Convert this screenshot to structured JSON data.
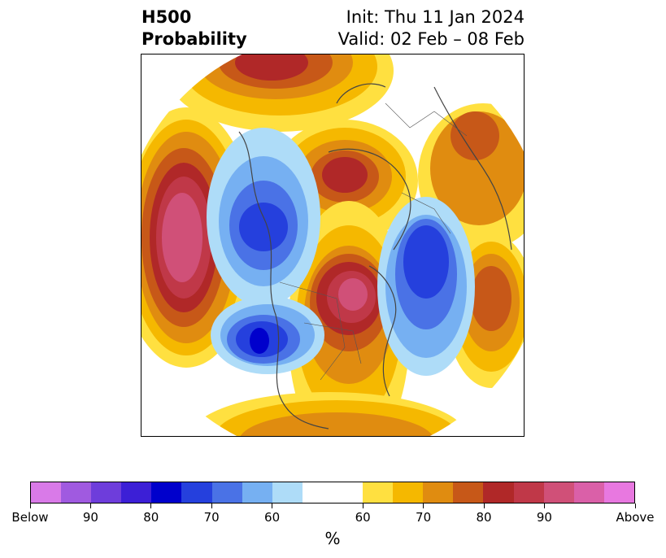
{
  "title": {
    "left_line1": "H500",
    "left_line2": "Probability",
    "right_line1": "Init: Thu 11 Jan 2024",
    "right_line2": "Valid: 02 Feb – 08 Feb"
  },
  "colorbar": {
    "unit": "%",
    "below_colors": [
      "#d97ae8",
      "#a05ae0",
      "#6e3ddb",
      "#3c1fd6",
      "#0000cc",
      "#2540dd",
      "#4a72e6",
      "#76b0f2",
      "#aedcf8"
    ],
    "neutral_color": "#ffffff",
    "above_colors": [
      "#ffe040",
      "#f5b800",
      "#e08c10",
      "#c75818",
      "#b02828",
      "#c03848",
      "#d05078",
      "#da60a8",
      "#e878e0"
    ],
    "tick_labels": [
      "Below",
      "90",
      "80",
      "70",
      "60",
      "60",
      "70",
      "80",
      "90",
      "Above"
    ]
  },
  "map": {
    "projection": "north-polar-stereographic",
    "field": "500-hPa height tercile probability"
  }
}
